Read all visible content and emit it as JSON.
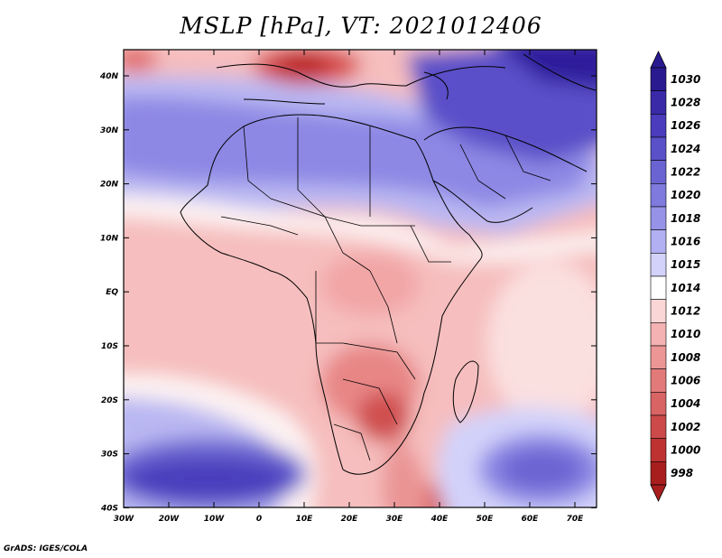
{
  "title": "MSLP [hPa], VT: 2021012406",
  "credit": "GrADS: IGES/COLA",
  "axes": {
    "lon_labels": [
      "30W",
      "20W",
      "10W",
      "0",
      "10E",
      "20E",
      "30E",
      "40E",
      "50E",
      "60E",
      "70E"
    ],
    "lat_labels": [
      "40N",
      "30N",
      "20N",
      "10N",
      "EQ",
      "10S",
      "20S",
      "30S",
      "40S"
    ]
  },
  "colorbar": {
    "levels": [
      "1030",
      "1028",
      "1026",
      "1024",
      "1022",
      "1020",
      "1018",
      "1016",
      "1015",
      "1014",
      "1012",
      "1010",
      "1008",
      "1006",
      "1004",
      "1002",
      "1000",
      "998"
    ],
    "colors": [
      "#2a1a90",
      "#3a2aa8",
      "#4a3cbc",
      "#5a50c8",
      "#6a64d2",
      "#7e7ade",
      "#9692e8",
      "#b2b0f2",
      "#d2d2fa",
      "#ffffff",
      "#fbd6d6",
      "#f4b2b2",
      "#ec9696",
      "#e27a7a",
      "#d86464",
      "#cc4a4a",
      "#be3232",
      "#a81e1e"
    ]
  },
  "map": {
    "region": "Africa",
    "variable": "MSLP",
    "units": "hPa",
    "valid_time": "2021012406"
  }
}
